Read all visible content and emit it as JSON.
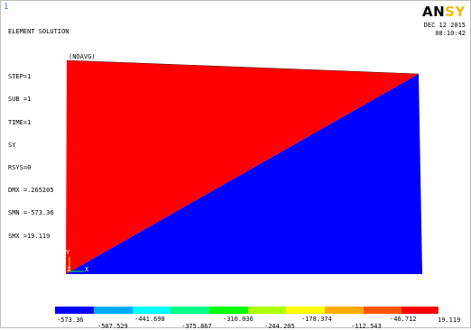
{
  "window": {
    "number": "1"
  },
  "info_lines": [
    "ELEMENT SOLUTION",
    "",
    "STEP=1",
    "SUB =1",
    "TIME=1",
    "SY",
    "RSYS=0",
    "DMX =.265205",
    "SMN =-573.36",
    "SMX =19.119"
  ],
  "nodal_tag": "(NOAVG)",
  "logo": {
    "main": "AN",
    "accent": "SY"
  },
  "date": "DEC 12 2015",
  "time": "08:10:42",
  "triad": {
    "y_label": "Y",
    "x_label": "X",
    "z_label": "Z"
  },
  "colors": {
    "contour_red": "#ff0000",
    "contour_blue": "#0000ff",
    "logo_accent": "#f5b800"
  },
  "legend": {
    "colors": [
      "#0000ff",
      "#00aaff",
      "#00ffff",
      "#00ff88",
      "#00ff00",
      "#aaff00",
      "#ffff00",
      "#ffaa00",
      "#ff5500",
      "#ff0000"
    ],
    "labels_bottom": [
      "-573.36",
      "-441.698",
      "-310.036",
      "-178.374",
      "-46.712"
    ],
    "labels_top": [
      "-507.529",
      "-375.867",
      "-244.205",
      "-112.543",
      "19.119"
    ]
  }
}
